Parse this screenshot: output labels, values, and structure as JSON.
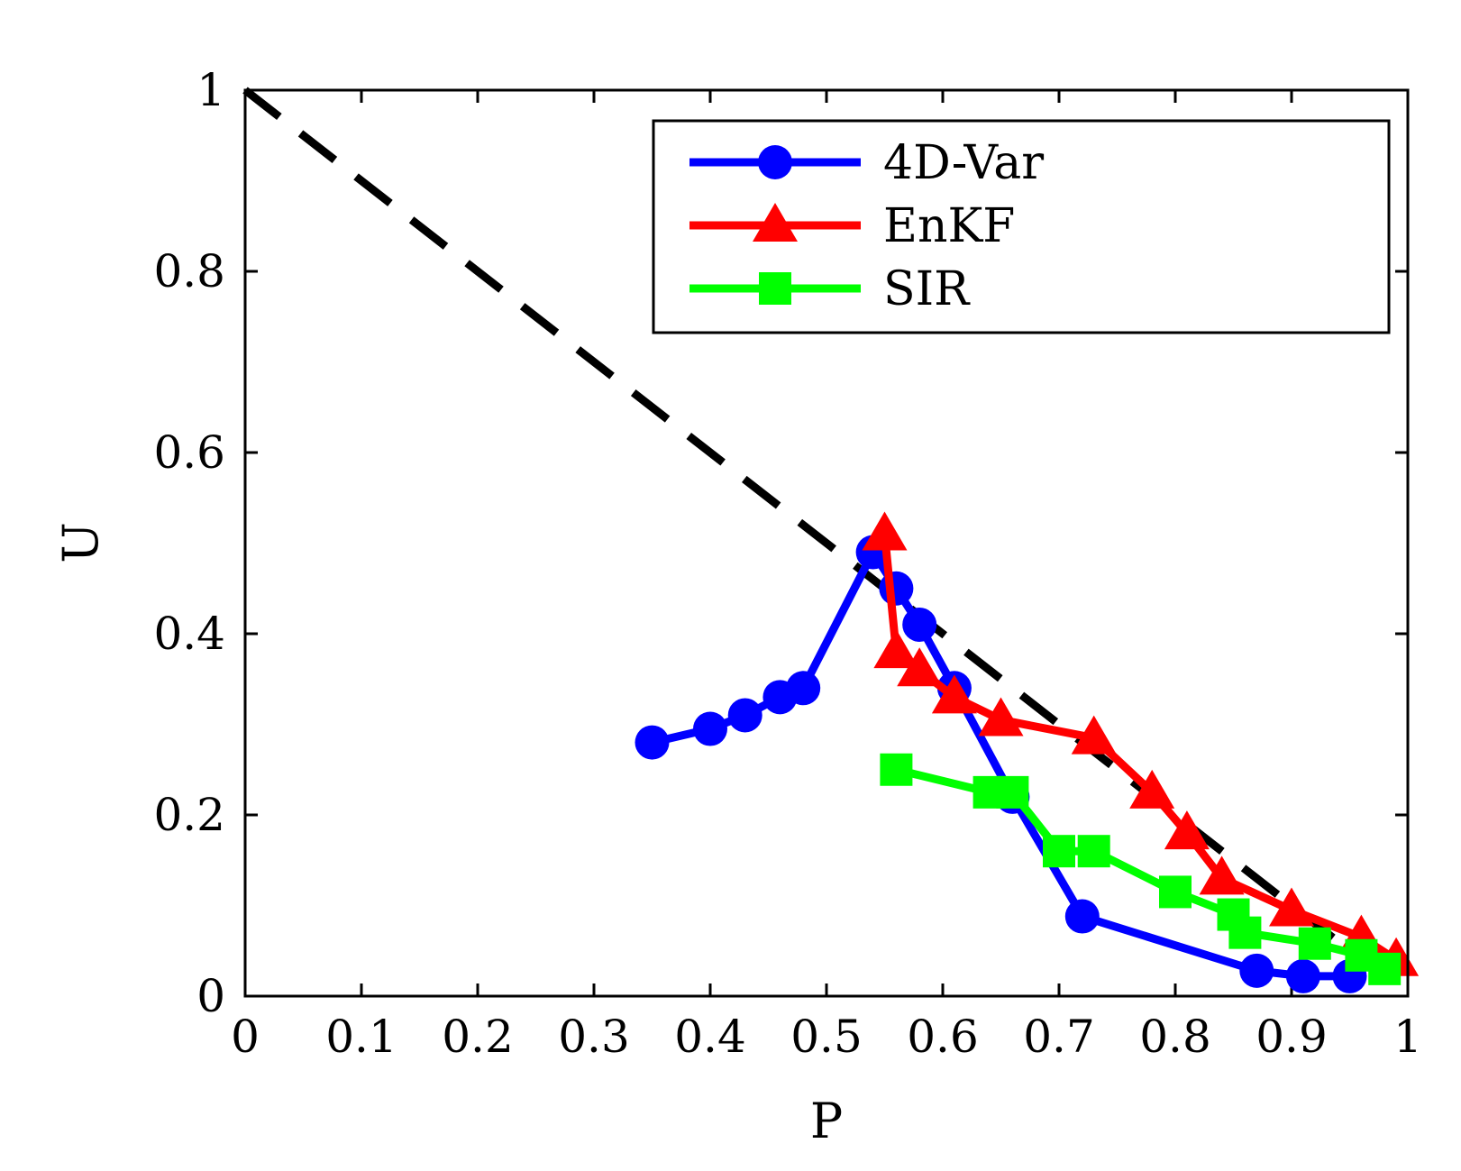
{
  "chart_data": {
    "type": "line",
    "title": "",
    "xlabel": "P",
    "ylabel": "U",
    "xlim": [
      0,
      1
    ],
    "ylim": [
      0,
      1
    ],
    "xticks": [
      "0",
      "0.1",
      "0.2",
      "0.3",
      "0.4",
      "0.5",
      "0.6",
      "0.7",
      "0.8",
      "0.9",
      "1"
    ],
    "yticks": [
      "0",
      "0.2",
      "0.4",
      "0.6",
      "0.8",
      "1"
    ],
    "grid": false,
    "legend_position": "top-right",
    "reference_line": {
      "style": "dashed",
      "color": "#000000",
      "points": [
        [
          0,
          1
        ],
        [
          1,
          0
        ]
      ]
    },
    "series": [
      {
        "name": "4D-Var",
        "color": "#0000ff",
        "marker": "circle",
        "points": [
          [
            0.35,
            0.28
          ],
          [
            0.4,
            0.295
          ],
          [
            0.43,
            0.31
          ],
          [
            0.46,
            0.33
          ],
          [
            0.48,
            0.34
          ],
          [
            0.54,
            0.49
          ],
          [
            0.56,
            0.45
          ],
          [
            0.58,
            0.41
          ],
          [
            0.61,
            0.34
          ],
          [
            0.66,
            0.22
          ],
          [
            0.72,
            0.088
          ],
          [
            0.87,
            0.028
          ],
          [
            0.91,
            0.022
          ],
          [
            0.95,
            0.022
          ]
        ]
      },
      {
        "name": "EnKF",
        "color": "#ff0000",
        "marker": "triangle",
        "points": [
          [
            0.55,
            0.51
          ],
          [
            0.56,
            0.38
          ],
          [
            0.58,
            0.36
          ],
          [
            0.61,
            0.33
          ],
          [
            0.65,
            0.305
          ],
          [
            0.73,
            0.285
          ],
          [
            0.78,
            0.225
          ],
          [
            0.81,
            0.18
          ],
          [
            0.84,
            0.13
          ],
          [
            0.9,
            0.095
          ],
          [
            0.96,
            0.065
          ],
          [
            0.99,
            0.04
          ]
        ]
      },
      {
        "name": "SIR",
        "color": "#00ff00",
        "marker": "square",
        "points": [
          [
            0.56,
            0.25
          ],
          [
            0.64,
            0.225
          ],
          [
            0.66,
            0.225
          ],
          [
            0.7,
            0.16
          ],
          [
            0.73,
            0.16
          ],
          [
            0.8,
            0.115
          ],
          [
            0.85,
            0.09
          ],
          [
            0.86,
            0.07
          ],
          [
            0.92,
            0.058
          ],
          [
            0.96,
            0.045
          ],
          [
            0.98,
            0.03
          ]
        ]
      }
    ]
  }
}
